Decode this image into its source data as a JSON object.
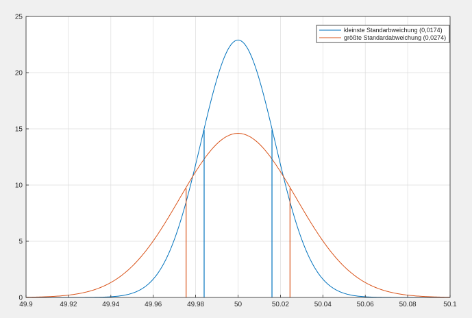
{
  "chart_data": {
    "type": "line",
    "title": "",
    "xlabel": "",
    "ylabel": "",
    "xlim": [
      49.9,
      50.1
    ],
    "ylim": [
      0,
      25
    ],
    "grid": true,
    "legend_position": "top-right",
    "x_ticks": [
      "49.9",
      "49.92",
      "49.94",
      "49.96",
      "49.98",
      "50",
      "50.02",
      "50.04",
      "50.06",
      "50.08",
      "50.1"
    ],
    "x_tick_values": [
      49.9,
      49.92,
      49.94,
      49.96,
      49.98,
      50.0,
      50.02,
      50.04,
      50.06,
      50.08,
      50.1
    ],
    "y_ticks": [
      "0",
      "5",
      "10",
      "15",
      "20",
      "25"
    ],
    "y_tick_values": [
      0,
      5,
      10,
      15,
      20,
      25
    ],
    "series": [
      {
        "name": "kleinste Standarbweichung (0,0174)",
        "color": "#0072bd",
        "distribution": "normal",
        "mean": 50.0,
        "std": 0.0174,
        "peak": 22.9,
        "markers": [
          {
            "x": 49.984,
            "y": 14.9
          },
          {
            "x": 50.016,
            "y": 14.9
          }
        ]
      },
      {
        "name": "größte Standardabweichung (0,0274)",
        "color": "#d95319",
        "distribution": "normal",
        "mean": 50.0,
        "std": 0.0274,
        "peak": 14.6,
        "markers": [
          {
            "x": 49.9755,
            "y": 9.7
          },
          {
            "x": 50.0245,
            "y": 9.7
          }
        ]
      }
    ]
  }
}
